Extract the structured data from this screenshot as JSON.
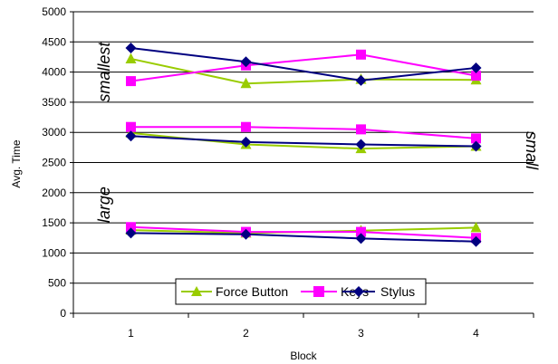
{
  "chart_data": {
    "type": "line",
    "xlabel": "Block",
    "ylabel": "Avg. Time",
    "ylim": [
      0,
      5000
    ],
    "yticks": [
      0,
      500,
      1000,
      1500,
      2000,
      2500,
      3000,
      3500,
      4000,
      4500,
      5000
    ],
    "categories": [
      "1",
      "2",
      "3",
      "4"
    ],
    "grid": "horizontal",
    "legend_position": "bottom-center",
    "legend": [
      "Force Button",
      "Keys",
      "Stylus"
    ],
    "series": [
      {
        "name": "Force Button",
        "group": "smallest",
        "color": "#99cc00",
        "marker": "triangle",
        "values": [
          4220,
          3810,
          3880,
          3870
        ]
      },
      {
        "name": "Keys",
        "group": "smallest",
        "color": "#ff00ff",
        "marker": "square",
        "values": [
          3850,
          4110,
          4290,
          3940
        ]
      },
      {
        "name": "Stylus",
        "group": "smallest",
        "color": "#000080",
        "marker": "diamond",
        "values": [
          4400,
          4170,
          3860,
          4070
        ]
      },
      {
        "name": "Force Button",
        "group": "small",
        "color": "#99cc00",
        "marker": "triangle",
        "values": [
          2990,
          2800,
          2730,
          2770
        ]
      },
      {
        "name": "Keys",
        "group": "small",
        "color": "#ff00ff",
        "marker": "square",
        "values": [
          3090,
          3090,
          3050,
          2900
        ]
      },
      {
        "name": "Stylus",
        "group": "small",
        "color": "#000080",
        "marker": "diamond",
        "values": [
          2940,
          2840,
          2800,
          2770
        ]
      },
      {
        "name": "Force Button",
        "group": "large",
        "color": "#99cc00",
        "marker": "triangle",
        "values": [
          1380,
          1330,
          1370,
          1420
        ]
      },
      {
        "name": "Keys",
        "group": "large",
        "color": "#ff00ff",
        "marker": "square",
        "values": [
          1430,
          1350,
          1350,
          1250
        ]
      },
      {
        "name": "Stylus",
        "group": "large",
        "color": "#000080",
        "marker": "diamond",
        "values": [
          1330,
          1310,
          1240,
          1190
        ]
      }
    ],
    "annotations": [
      {
        "text": "smallest",
        "anchor_x": "left",
        "anchor_y": 4000
      },
      {
        "text": "small",
        "anchor_x": "right",
        "anchor_y": 2700
      },
      {
        "text": "large",
        "anchor_x": "left",
        "anchor_y": 1800
      }
    ]
  }
}
